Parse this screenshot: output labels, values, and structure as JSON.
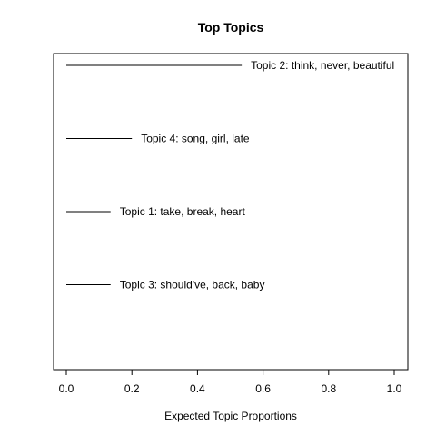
{
  "chart_data": {
    "type": "bar",
    "orientation": "horizontal",
    "title": "Top Topics",
    "xlabel": "Expected Topic Proportions",
    "ylabel": "",
    "xlim": [
      0,
      1
    ],
    "xticks": [
      0.0,
      0.2,
      0.4,
      0.6,
      0.8,
      1.0
    ],
    "xtick_labels": [
      "0.0",
      "0.2",
      "0.4",
      "0.6",
      "0.8",
      "1.0"
    ],
    "grid": false,
    "categories": [
      "Topic 2: think, never, beautiful",
      "Topic 4: song, girl, late",
      "Topic 1: take, break, heart",
      "Topic 3: should've, back, baby"
    ],
    "values": [
      0.535,
      0.2,
      0.135,
      0.135
    ],
    "color": "#000000"
  }
}
